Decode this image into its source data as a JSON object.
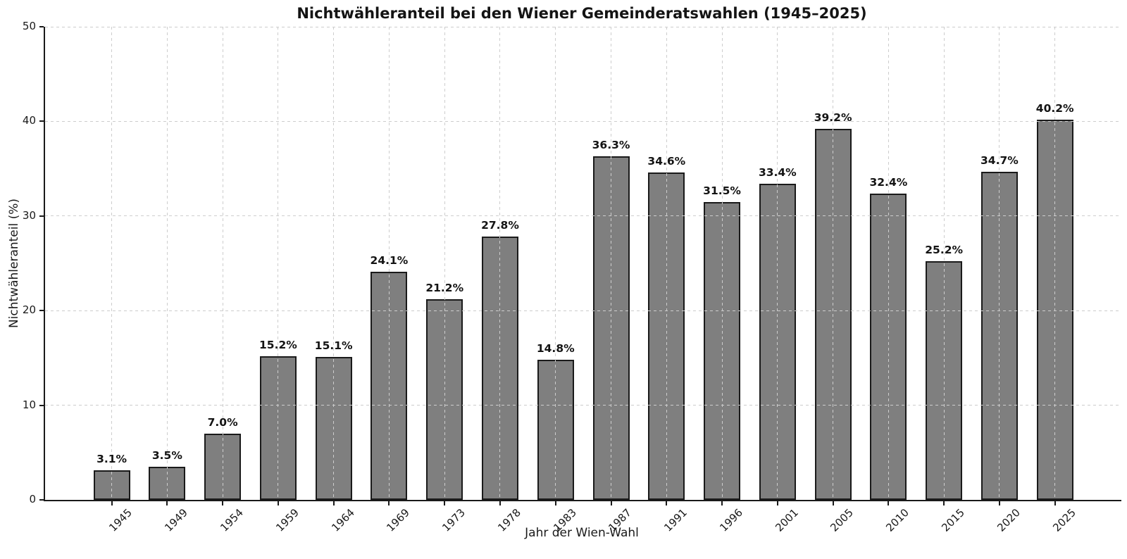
{
  "chart_data": {
    "type": "bar",
    "title": "Nichtwähleranteil bei den Wiener Gemeinderatswahlen (1945–2025)",
    "xlabel": "Jahr der Wien-Wahl",
    "ylabel": "Nichtwähleranteil (%)",
    "categories": [
      "1945",
      "1949",
      "1954",
      "1959",
      "1964",
      "1969",
      "1973",
      "1978",
      "1983",
      "1987",
      "1991",
      "1996",
      "2001",
      "2005",
      "2010",
      "2015",
      "2020",
      "2025"
    ],
    "values": [
      3.1,
      3.5,
      7.0,
      15.2,
      15.1,
      24.1,
      21.2,
      27.8,
      14.8,
      36.3,
      34.6,
      31.5,
      33.4,
      39.2,
      32.4,
      25.2,
      34.7,
      40.2
    ],
    "value_labels": [
      "3.1%",
      "3.5%",
      "7.0%",
      "15.2%",
      "15.1%",
      "24.1%",
      "21.2%",
      "27.8%",
      "14.8%",
      "36.3%",
      "34.6%",
      "31.5%",
      "33.4%",
      "39.2%",
      "32.4%",
      "25.2%",
      "34.7%",
      "40.2%"
    ],
    "ylim": [
      0,
      50
    ],
    "yticks": [
      0,
      10,
      20,
      30,
      40,
      50
    ],
    "ytick_labels": [
      "0",
      "10",
      "20",
      "30",
      "40",
      "50"
    ],
    "x_tick_rotation_deg": 45,
    "grid": {
      "style": "dashed",
      "axes": "both",
      "drawn_above_bars": true
    },
    "legend": "none",
    "colors": {
      "bar_fill": "#7f7f7f",
      "bar_edge": "#1a1a1a",
      "grid": "#cdcdcd",
      "text": "#1a1a1a",
      "background": "#ffffff"
    }
  }
}
